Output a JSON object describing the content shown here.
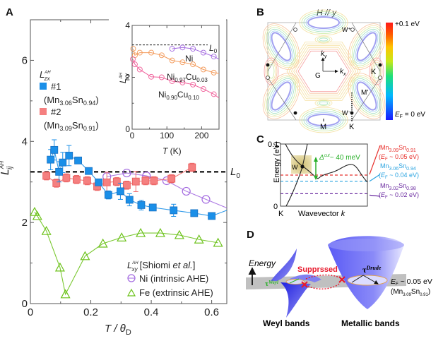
{
  "panels": {
    "A": "A",
    "B": "B",
    "C": "C",
    "D": "D"
  },
  "chart_data": [
    {
      "id": "A-main",
      "type": "scatter",
      "xlabel": "T / θ_D",
      "xlabel_main": "T / θ",
      "xlabel_sub": "D",
      "ylabel": "L_ij^AH",
      "xlim": [
        0,
        0.65
      ],
      "ylim": [
        0,
        7
      ],
      "xticks": [
        0,
        0.2,
        0.4,
        0.6
      ],
      "xtick_labels": [
        "0",
        "0.2",
        "0.4",
        "0.6"
      ],
      "yticks": [
        0,
        2,
        4,
        6
      ],
      "ytick_labels": [
        "0",
        "2",
        "4",
        "6"
      ],
      "reference_line": {
        "label": "L",
        "label_sub": "0",
        "y": 3.25,
        "style": "dashed"
      },
      "legend_top": {
        "title": "L_zx^AH",
        "entries": [
          {
            "label": "#1",
            "formula": "(Mn3.06Sn0.94)",
            "color": "#1a8fe8"
          },
          {
            "label": "#2",
            "formula": "(Mn3.09Sn0.91)",
            "color": "#f06a6a"
          }
        ]
      },
      "legend_bottom": {
        "title": "L_xy^AH [Shiomi et al.]",
        "title_main": "[Shiomi ",
        "title_em": "et al.",
        "title_end": "]",
        "entries": [
          {
            "label": "Ni (intrinsic AHE)",
            "color": "#a36ae0"
          },
          {
            "label": "Fe (extrinsic AHE)",
            "color": "#6cc21a"
          }
        ]
      },
      "series": [
        {
          "name": "#1 (Mn3.06Sn0.94) L_zx^AH",
          "marker": "square",
          "color": "#1a8fe8",
          "x": [
            0.067,
            0.079,
            0.095,
            0.107,
            0.128,
            0.158,
            0.193,
            0.226,
            0.258,
            0.298,
            0.328,
            0.367,
            0.405,
            0.474,
            0.542,
            0.6,
            0.65
          ],
          "y": [
            3.55,
            3.79,
            3.25,
            3.48,
            3.65,
            3.53,
            3.27,
            2.99,
            2.68,
            2.77,
            2.56,
            2.43,
            2.37,
            2.3,
            2.23,
            2.16,
            2.3
          ],
          "markers": 16,
          "err": [
            0.25,
            0.25,
            0.25,
            0.25,
            0.25,
            0.0,
            0.0,
            0.0,
            0.1,
            0.2,
            0.15,
            0.12,
            0.0,
            0.15,
            0.0,
            0.0,
            0
          ]
        },
        {
          "name": "#2 (Mn3.09Sn0.91) L_zx^AH",
          "marker": "square",
          "color": "#f06a6a",
          "x": [
            0.053,
            0.086,
            0.119,
            0.153,
            0.188,
            0.221,
            0.253,
            0.286,
            0.319,
            0.349,
            0.381,
            0.409,
            0.467,
            0.535
          ],
          "y": [
            3.15,
            2.97,
            3.1,
            3.06,
            3.03,
            2.89,
            2.99,
            3.01,
            2.92,
            3.01,
            3.03,
            3.03,
            3.08,
            3.36
          ],
          "markers": 14,
          "err": [
            0.1,
            0.1,
            0.1,
            0.1,
            0.1,
            0.1,
            0.25,
            0.1,
            0.1,
            0.25,
            0.1,
            0.1,
            0.1,
            0.1
          ]
        },
        {
          "name": "Ni (intrinsic AHE)",
          "marker": "circle",
          "color": "#a36ae0",
          "x": [
            0.253,
            0.319,
            0.384,
            0.451,
            0.516,
            0.581,
            0.65
          ],
          "y": [
            3.13,
            3.22,
            3.15,
            3.03,
            2.77,
            2.57,
            2.36
          ],
          "markers": 6
        },
        {
          "name": "Fe (extrinsic AHE)",
          "marker": "triangle",
          "color": "#6cc21a",
          "x": [
            0.014,
            0.023,
            0.053,
            0.098,
            0.116,
            0.181,
            0.24,
            0.302,
            0.365,
            0.43,
            0.493,
            0.558,
            0.621
          ],
          "y": [
            2.26,
            2.16,
            1.79,
            0.89,
            0.23,
            1.17,
            1.48,
            1.63,
            1.74,
            1.74,
            1.69,
            1.58,
            1.5
          ],
          "markers": 13
        }
      ]
    },
    {
      "id": "A-inset",
      "type": "line",
      "xlabel": "T (K)",
      "xlabel_main": "T",
      "xlabel_unit": " (K)",
      "ylabel": "L_xy^AH",
      "xlim": [
        0,
        250
      ],
      "ylim": [
        0,
        4
      ],
      "xticks": [
        0,
        100,
        200
      ],
      "xtick_labels": [
        "0",
        "100",
        "200"
      ],
      "yticks": [
        0,
        2,
        4
      ],
      "ytick_labels": [
        "0",
        "2",
        "4"
      ],
      "reference_line": {
        "label": "L",
        "label_sub": "0",
        "y": 3.25
      },
      "series": [
        {
          "name": "Ni",
          "color": "#a36ae0",
          "x": [
            115,
            145,
            175,
            205,
            235,
            250
          ],
          "y": [
            3.1,
            3.15,
            3.1,
            2.95,
            2.8,
            2.7
          ],
          "markers": 5
        },
        {
          "name": "Ni0.97Cu0.03",
          "color": "#f39a5a",
          "x": [
            3,
            8,
            22,
            55,
            85,
            115,
            145,
            175,
            205,
            235,
            250
          ],
          "y": [
            3.1,
            2.85,
            2.95,
            2.95,
            2.85,
            2.65,
            2.58,
            2.5,
            2.3,
            2.18,
            2.15
          ],
          "markers": 10
        },
        {
          "name": "Ni0.90Cu0.10",
          "color": "#f0609a",
          "x": [
            2,
            8,
            22,
            55,
            85,
            115,
            145,
            175,
            205,
            235,
            250
          ],
          "y": [
            2.7,
            2.5,
            2.3,
            2.02,
            2.0,
            1.85,
            1.8,
            1.72,
            1.55,
            1.35,
            1.2
          ],
          "markers": 10
        }
      ],
      "labels": [
        {
          "text": "Ni"
        },
        {
          "base": "Ni",
          "sub1": "0.97",
          "mid": "Cu",
          "sub2": "0.03"
        },
        {
          "base": "Ni",
          "sub1": "0.90",
          "mid": "Cu",
          "sub2": "0.10"
        }
      ]
    },
    {
      "id": "C",
      "type": "line",
      "xlabel": "Wavevector k",
      "xlabel_main": "Wavevector ",
      "xlabel_em": "k",
      "ylabel": "Energy (eV)",
      "ylim": [
        0,
        0.1
      ],
      "ytick_labels": [
        "0",
        "0.1"
      ],
      "x_start_label": "K",
      "point_label": "W",
      "gap_annotation": "Δ^cut ~ 40 meV",
      "gap_main": "Δ",
      "gap_sup": "cut",
      "gap_end": "~ 40 meV",
      "fermi_levels": [
        {
          "compound": "Mn3.09Sn0.91",
          "base": "Mn",
          "sub1": "3.09",
          "mid": "Sn",
          "sub2": "0.91",
          "ef": "(E_F ~ 0.05 eV)",
          "ef_tail": " ~ 0.05 eV)",
          "energy": 0.05,
          "color": "#e8322e"
        },
        {
          "compound": "Mn3.06Sn0.94",
          "base": "Mn",
          "sub1": "3.06",
          "mid": "Sn",
          "sub2": "0.94",
          "ef": "(E_F ~ 0.04 eV)",
          "ef_tail": " ~ 0.04 eV)",
          "energy": 0.04,
          "color": "#2aa3e0"
        },
        {
          "compound": "Mn3.02Sn0.98",
          "base": "Mn",
          "sub1": "3.02",
          "mid": "Sn",
          "sub2": "0.98",
          "ef": "(E_F ~ 0.02 eV)",
          "ef_tail": " ~ 0.02 eV)",
          "energy": 0.02,
          "color": "#6a2aa0"
        }
      ]
    }
  ],
  "panel_B": {
    "title": "H // y",
    "colorbar_top": "+0.1 eV",
    "colorbar_bottom": "E_F = 0 eV",
    "colorbar_bottom_main": "E",
    "colorbar_bottom_sub": "F",
    "colorbar_bottom_tail": " = 0 eV",
    "labels": {
      "ky": "k",
      "ky_sub": "y",
      "kx": "k",
      "kx_sub": "x",
      "G": "G",
      "K_right": "K",
      "M_prime": "M'",
      "W_plus": "W⁺",
      "W_minus": "W⁻",
      "M_bottom": "M",
      "K_bottom": "K"
    }
  },
  "panel_D": {
    "energy_label": "Energy",
    "suppressed_label": "Supprssed",
    "tau_weyl": "τ",
    "tau_weyl_sup": "Weyl",
    "tau_drude": "τ",
    "tau_drude_sup": "Drude",
    "ef_label_main": "E",
    "ef_label_sub": "F",
    "ef_label_tail": " ~ 0.05 eV",
    "compound": {
      "base": "(Mn",
      "sub1": "3.09",
      "mid": "Sn",
      "sub2": "0.91",
      "end": ")"
    },
    "weyl_bands": "Weyl bands",
    "metallic_bands": "Metallic bands"
  }
}
